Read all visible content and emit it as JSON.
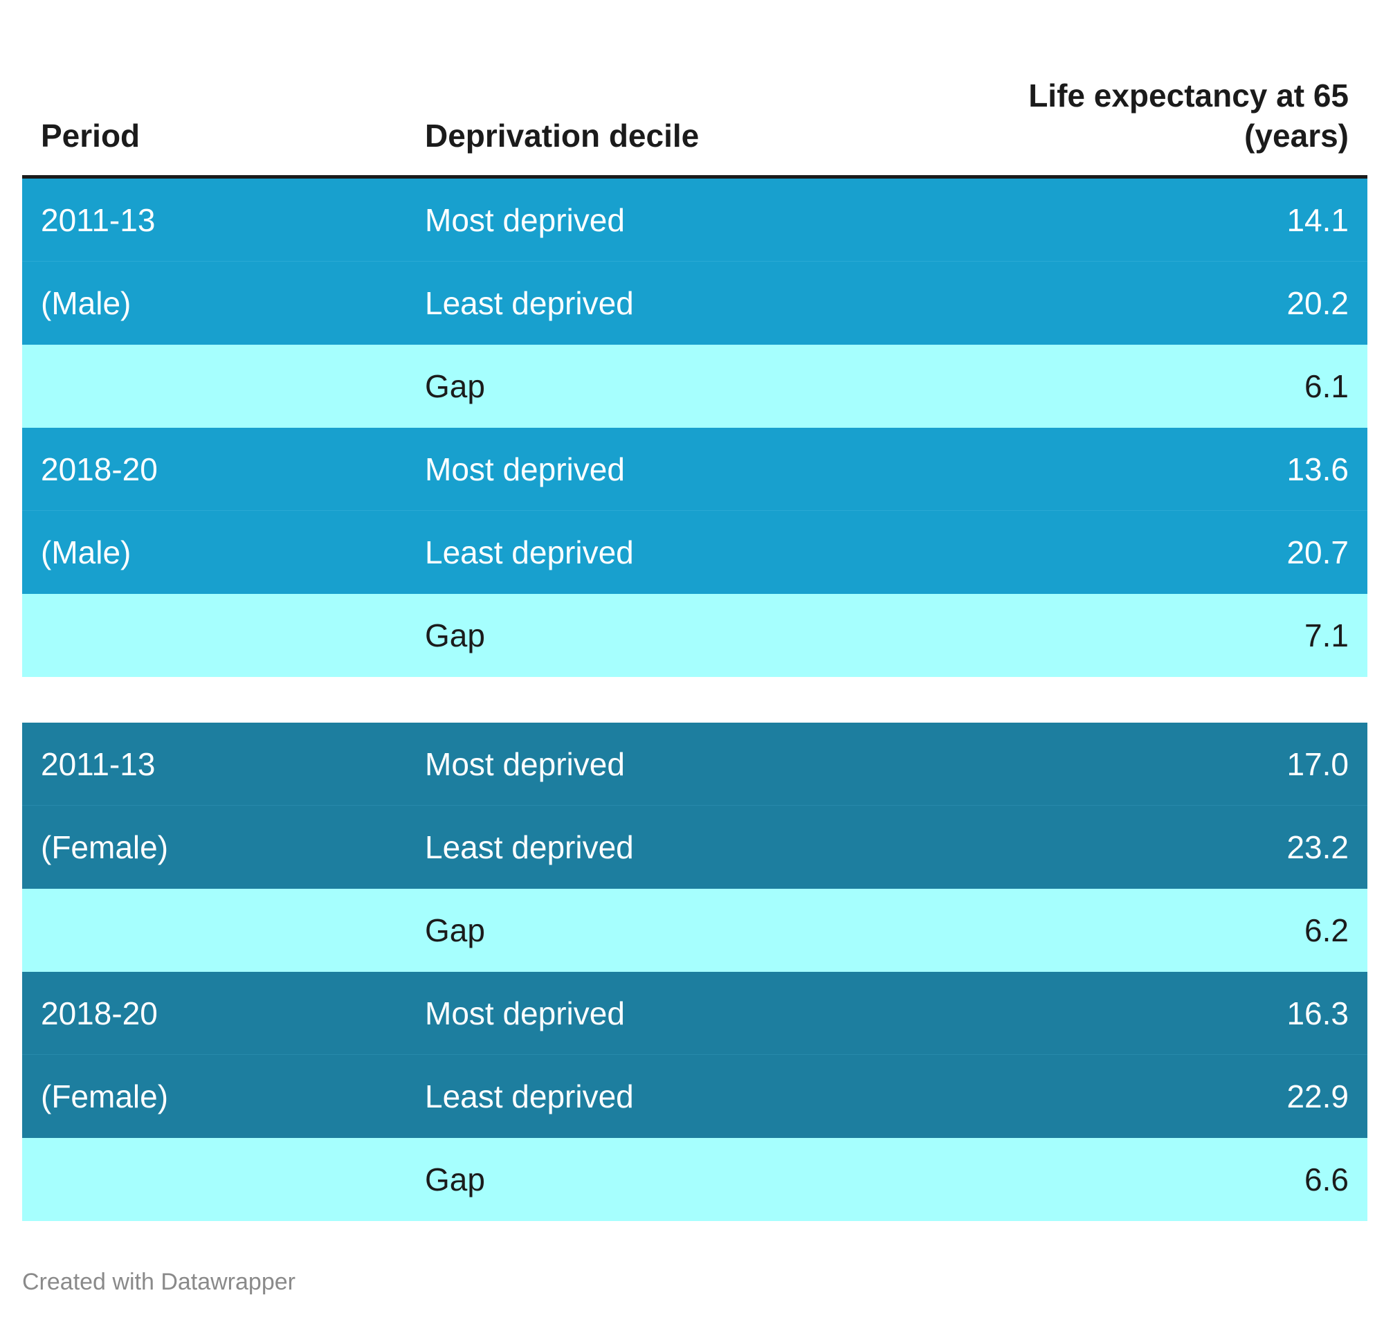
{
  "chart_data": {
    "type": "table",
    "columns": [
      "Period",
      "Deprivation decile",
      "Life expectancy at 65\n(years)"
    ],
    "groups": [
      {
        "sex": "male",
        "rows": [
          {
            "period": "2011-13",
            "decile": "Most deprived",
            "value": "14.1"
          },
          {
            "period": "(Male)",
            "decile": "Least deprived",
            "value": "20.2"
          },
          {
            "period": "",
            "decile": "Gap",
            "value": "6.1"
          },
          {
            "period": "2018-20",
            "decile": "Most deprived",
            "value": "13.6"
          },
          {
            "period": "(Male)",
            "decile": "Least deprived",
            "value": "20.7"
          },
          {
            "period": "",
            "decile": "Gap",
            "value": "7.1"
          }
        ]
      },
      {
        "sex": "female",
        "rows": [
          {
            "period": "2011-13",
            "decile": "Most deprived",
            "value": "17.0"
          },
          {
            "period": "(Female)",
            "decile": "Least deprived",
            "value": "23.2"
          },
          {
            "period": "",
            "decile": "Gap",
            "value": "6.2"
          },
          {
            "period": "2018-20",
            "decile": "Most deprived",
            "value": "16.3"
          },
          {
            "period": "(Female)",
            "decile": "Least deprived",
            "value": "22.9"
          },
          {
            "period": "",
            "decile": "Gap",
            "value": "6.6"
          }
        ]
      }
    ],
    "colors": {
      "male_rows": "#18a0ce",
      "female_rows": "#1d7e9f",
      "gap_rows": "#a6fffe"
    }
  },
  "footer": {
    "credit": "Created with Datawrapper"
  }
}
